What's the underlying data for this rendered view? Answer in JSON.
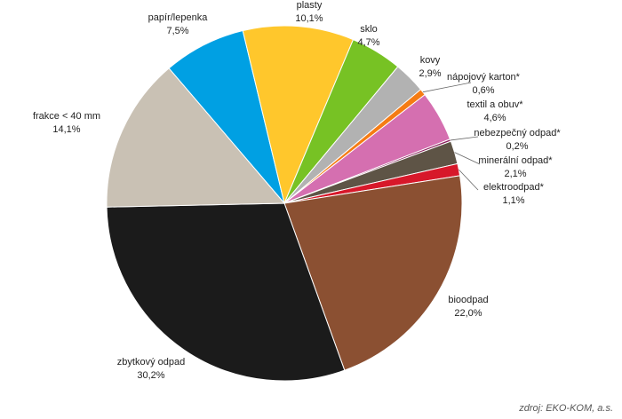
{
  "chart_data": {
    "type": "pie",
    "categories": [
      "papír/lepenka",
      "plasty",
      "sklo",
      "kovy",
      "nápojový karton*",
      "textil a obuv*",
      "nebezpečný odpad*",
      "minerální odpad*",
      "elektroodpad*",
      "bioodpad",
      "zbytkový odpad",
      "frakce < 40 mm"
    ],
    "values": [
      7.5,
      10.1,
      4.7,
      2.9,
      0.6,
      4.6,
      0.2,
      2.1,
      1.1,
      22.0,
      30.2,
      14.1
    ],
    "value_labels": [
      "7,5%",
      "10,1%",
      "4,7%",
      "2,9%",
      "0,6%",
      "4,6%",
      "0,2%",
      "2,1%",
      "1,1%",
      "22,0%",
      "30,2%",
      "14,1%"
    ],
    "colors": [
      "#00a0e3",
      "#ffc72c",
      "#77c224",
      "#b2b2b2",
      "#f57c14",
      "#d56fb0",
      "#8a1f5c",
      "#5e5446",
      "#d7182a",
      "#8b5032",
      "#1b1b1b",
      "#c9c1b4"
    ],
    "source": "zdroj: EKO-KOM, a.s."
  }
}
